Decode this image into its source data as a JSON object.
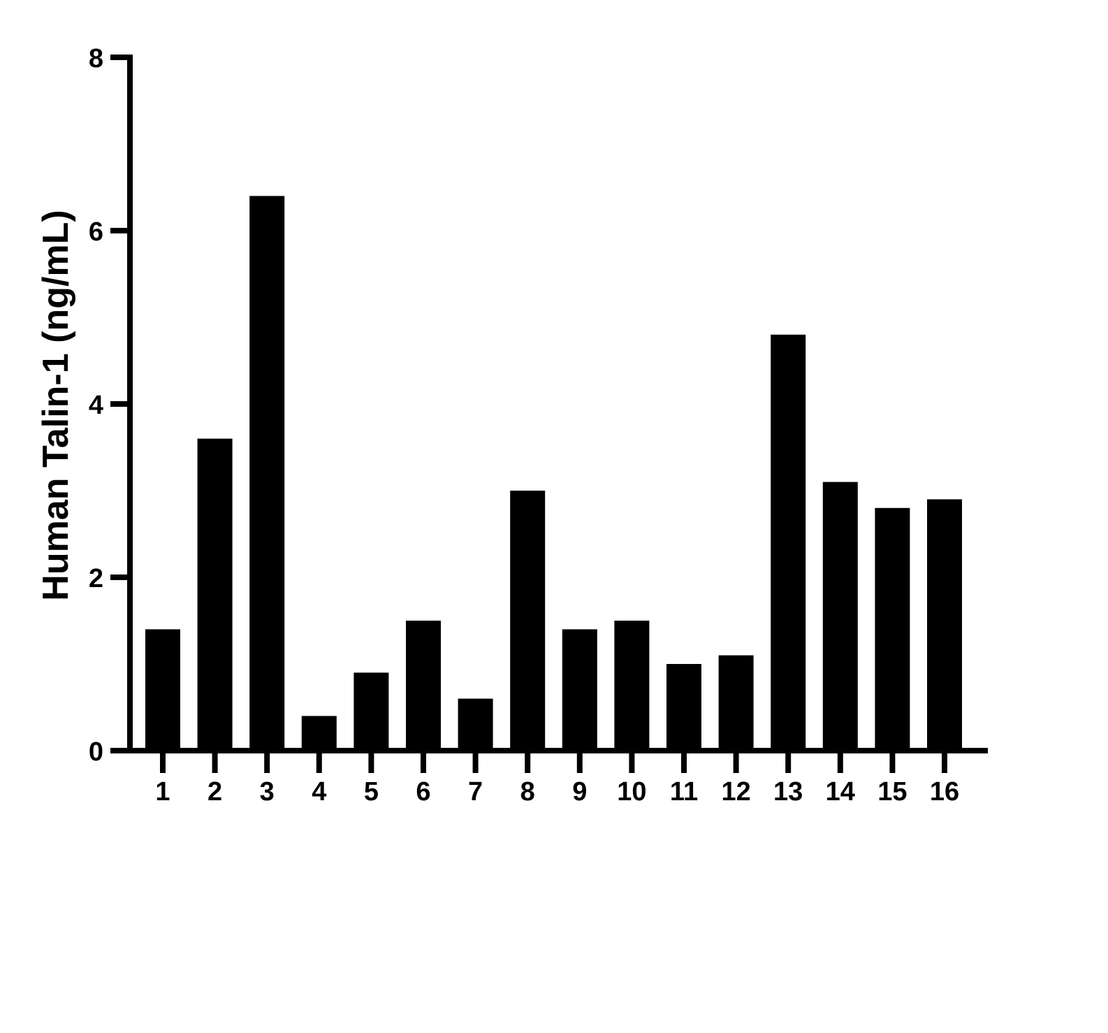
{
  "chart_data": {
    "type": "bar",
    "title": "",
    "xlabel": "",
    "ylabel": "Human Talin-1 (ng/mL)",
    "categories": [
      "1",
      "2",
      "3",
      "4",
      "5",
      "6",
      "7",
      "8",
      "9",
      "10",
      "11",
      "12",
      "13",
      "14",
      "15",
      "16"
    ],
    "values": [
      1.4,
      3.6,
      6.4,
      0.4,
      0.9,
      1.5,
      0.6,
      3.0,
      1.4,
      1.5,
      1.0,
      1.1,
      4.8,
      3.1,
      2.8,
      2.9
    ],
    "ylim": [
      0,
      8
    ],
    "yticks": [
      0,
      2,
      4,
      6,
      8
    ],
    "grid": false,
    "legend": "none",
    "bar_color": "#000000"
  }
}
